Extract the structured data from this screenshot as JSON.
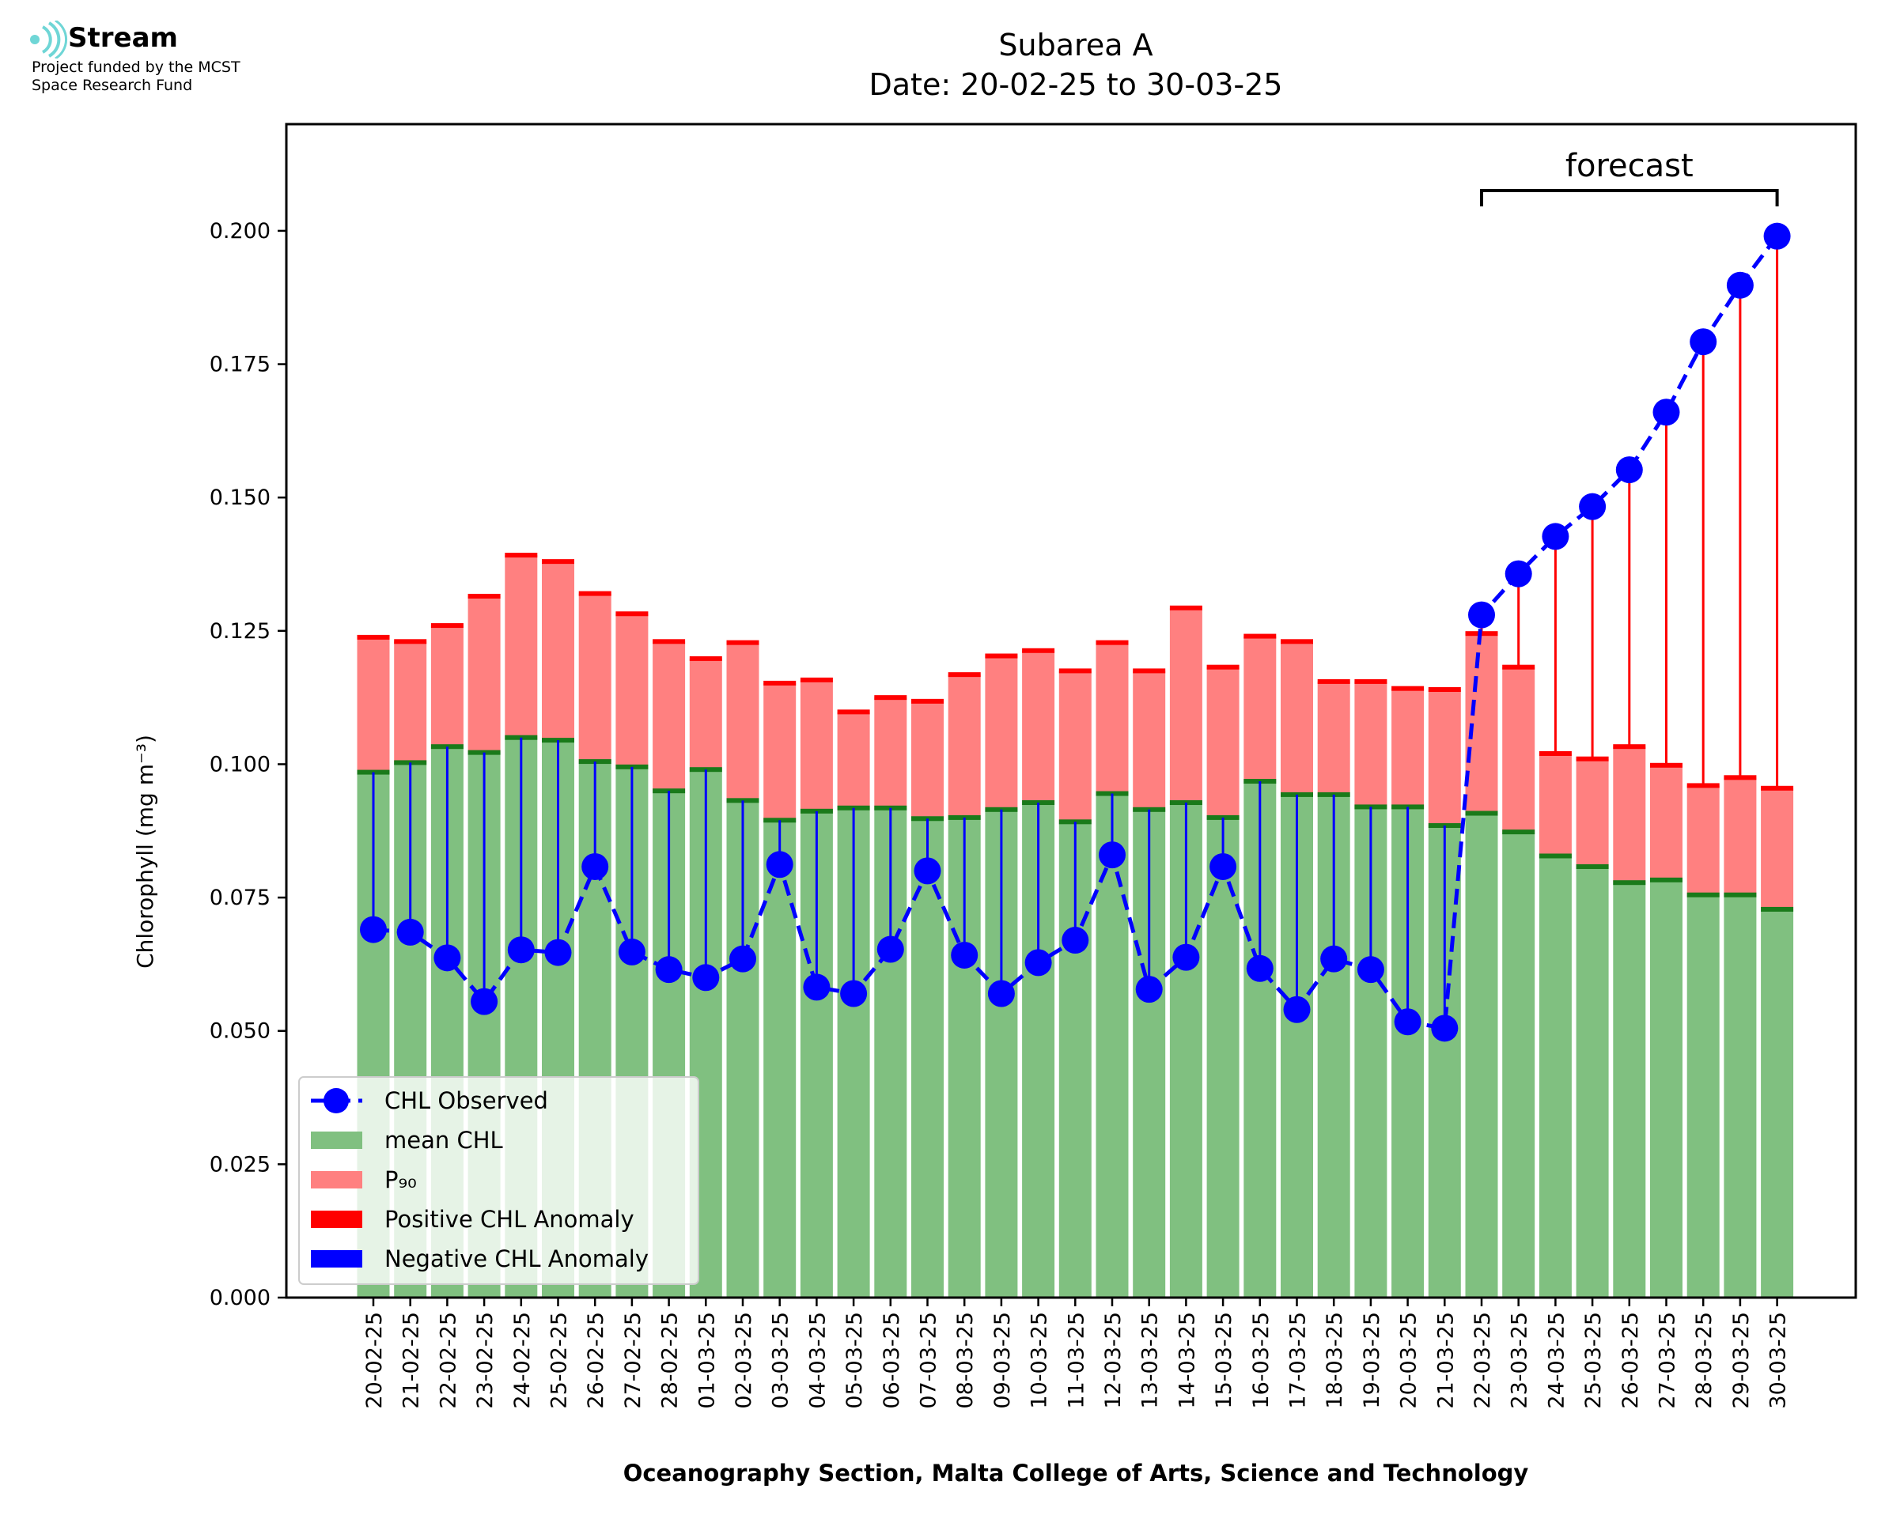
{
  "logo": {
    "name": "Stream",
    "line1": "Project funded by the MCST",
    "line2": "Space Research Fund",
    "color": "#6fd6d6"
  },
  "chart_data": {
    "type": "bar",
    "title": "Subarea A",
    "subtitle": "Date: 20-02-25 to 30-03-25",
    "xlabel": "Oceanography Section, Malta College of Arts, Science and Technology",
    "ylabel": "Chlorophyll (mg m⁻³)",
    "ylim": [
      0,
      0.22
    ],
    "yticks": [
      0.0,
      0.025,
      0.05,
      0.075,
      0.1,
      0.125,
      0.15,
      0.175,
      0.2
    ],
    "ytick_labels": [
      "0.000",
      "0.025",
      "0.050",
      "0.075",
      "0.100",
      "0.125",
      "0.150",
      "0.175",
      "0.200"
    ],
    "forecast_label": "forecast",
    "forecast_start_index": 30,
    "categories": [
      "20-02-25",
      "21-02-25",
      "22-02-25",
      "23-02-25",
      "24-02-25",
      "25-02-25",
      "26-02-25",
      "27-02-25",
      "28-02-25",
      "01-03-25",
      "02-03-25",
      "03-03-25",
      "04-03-25",
      "05-03-25",
      "06-03-25",
      "07-03-25",
      "08-03-25",
      "09-03-25",
      "10-03-25",
      "11-03-25",
      "12-03-25",
      "13-03-25",
      "14-03-25",
      "15-03-25",
      "16-03-25",
      "17-03-25",
      "18-03-25",
      "19-03-25",
      "20-03-25",
      "21-03-25",
      "22-03-25",
      "23-03-25",
      "24-03-25",
      "25-03-25",
      "26-03-25",
      "27-03-25",
      "28-03-25",
      "29-03-25",
      "30-03-25"
    ],
    "series": [
      {
        "name": "mean CHL",
        "kind": "bar",
        "color": "#80c080",
        "values": [
          0.0985,
          0.1003,
          0.1033,
          0.1022,
          0.105,
          0.1045,
          0.1005,
          0.0995,
          0.095,
          0.099,
          0.0932,
          0.0895,
          0.0912,
          0.0918,
          0.0918,
          0.0898,
          0.09,
          0.0915,
          0.0928,
          0.0892,
          0.0945,
          0.0915,
          0.0928,
          0.09,
          0.0968,
          0.0943,
          0.0943,
          0.092,
          0.092,
          0.0885,
          0.0908,
          0.0873,
          0.0828,
          0.0808,
          0.0778,
          0.0783,
          0.0755,
          0.0755,
          0.0728
        ]
      },
      {
        "name": "P₉₀",
        "kind": "bar",
        "color": "#ff8080",
        "values": [
          0.1238,
          0.123,
          0.126,
          0.1315,
          0.1392,
          0.138,
          0.132,
          0.1282,
          0.123,
          0.1198,
          0.1228,
          0.1152,
          0.1158,
          0.1098,
          0.1125,
          0.1118,
          0.1168,
          0.1203,
          0.1213,
          0.1175,
          0.1228,
          0.1175,
          0.1293,
          0.1182,
          0.124,
          0.123,
          0.1155,
          0.1155,
          0.1142,
          0.114,
          0.1245,
          0.1182,
          0.102,
          0.101,
          0.1033,
          0.0998,
          0.096,
          0.0975,
          0.0955
        ]
      },
      {
        "name": "CHL Observed",
        "kind": "line",
        "color": "#0000ff",
        "values": [
          0.069,
          0.0685,
          0.0637,
          0.0555,
          0.0652,
          0.0647,
          0.0808,
          0.0648,
          0.0615,
          0.06,
          0.0635,
          0.0812,
          0.0582,
          0.057,
          0.0653,
          0.08,
          0.0642,
          0.057,
          0.0628,
          0.067,
          0.083,
          0.0578,
          0.0638,
          0.0808,
          0.0617,
          0.054,
          0.0635,
          0.0615,
          0.0517,
          0.0505,
          0.128,
          0.1357,
          0.1427,
          0.1483,
          0.1552,
          0.166,
          0.1792,
          0.1898,
          0.199
        ]
      }
    ],
    "legend": {
      "position": "lower-left",
      "entries": [
        {
          "label": "CHL Observed",
          "color": "#0000ff",
          "marker": "line-dot"
        },
        {
          "label": "mean CHL",
          "color": "#80c080",
          "marker": "patch"
        },
        {
          "label": "P₉₀",
          "color": "#ff8080",
          "marker": "patch"
        },
        {
          "label": "Positive CHL Anomaly",
          "color": "#ff0000",
          "marker": "patch"
        },
        {
          "label": "Negative CHL Anomaly",
          "color": "#0000ff",
          "marker": "patch"
        }
      ]
    },
    "colors": {
      "positive_anomaly": "#ff0000",
      "negative_anomaly": "#0000ff",
      "mean_cap": "#1a7a1a"
    }
  }
}
